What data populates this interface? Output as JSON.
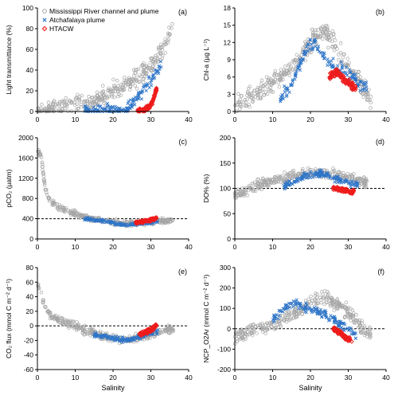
{
  "colors": {
    "river": "#a6a6a6",
    "atchafalaya": "#2e75c8",
    "htacw": "#ee1c1c",
    "axis": "#000000",
    "reference_line": "#000000"
  },
  "legend": {
    "items": [
      {
        "label": "Mississippi River channel and plume",
        "marker": "circle",
        "color": "#a6a6a6"
      },
      {
        "label": "Atchafalaya plume",
        "marker": "x",
        "color": "#2e75c8"
      },
      {
        "label": "HTACW",
        "marker": "diamond",
        "color": "#ee1c1c"
      }
    ],
    "placement": "top-left of panel (a)"
  },
  "chart_data": [
    {
      "panel": "(a)",
      "type": "scatter",
      "ylabel": "Light transmittance (%)",
      "xlabel": "",
      "xlim": [
        0,
        40
      ],
      "ylim": [
        0,
        100
      ],
      "xticks": [
        "0",
        "10",
        "20",
        "30",
        "40"
      ],
      "yticks": [
        "0",
        "20",
        "40",
        "60",
        "80",
        "100"
      ],
      "grid": false,
      "reference_line": null,
      "series": [
        {
          "name": "Mississippi River channel and plume",
          "trend": [
            [
              0,
              0
            ],
            [
              2,
              2
            ],
            [
              5,
              4
            ],
            [
              8,
              5
            ],
            [
              12,
              8
            ],
            [
              15,
              10
            ],
            [
              18,
              15
            ],
            [
              20,
              20
            ],
            [
              23,
              25
            ],
            [
              25,
              30
            ],
            [
              28,
              38
            ],
            [
              30,
              45
            ],
            [
              32,
              55
            ],
            [
              34,
              65
            ],
            [
              35,
              75
            ],
            [
              36,
              85
            ]
          ],
          "spread": 12
        },
        {
          "name": "Atchafalaya plume",
          "trend": [
            [
              12.5,
              1
            ],
            [
              18,
              1
            ],
            [
              22,
              1
            ],
            [
              24,
              3
            ],
            [
              25,
              8
            ],
            [
              27,
              15
            ],
            [
              29,
              25
            ],
            [
              31,
              35
            ],
            [
              32,
              42
            ],
            [
              33,
              48
            ]
          ],
          "spread": 8
        },
        {
          "name": "HTACW",
          "trend": [
            [
              26.5,
              1
            ],
            [
              28,
              1
            ],
            [
              29,
              3
            ],
            [
              30,
              6
            ],
            [
              30.5,
              10
            ],
            [
              31,
              16
            ],
            [
              31.5,
              22
            ]
          ],
          "spread": 3
        }
      ]
    },
    {
      "panel": "(b)",
      "type": "scatter",
      "ylabel": "Chl-a (µg L⁻¹)",
      "xlabel": "",
      "xlim": [
        0,
        40
      ],
      "ylim": [
        0,
        18
      ],
      "xticks": [
        "0",
        "10",
        "20",
        "30",
        "40"
      ],
      "yticks": [
        "0",
        "3",
        "6",
        "9",
        "12",
        "15",
        "18"
      ],
      "grid": false,
      "reference_line": null,
      "series": [
        {
          "name": "Mississippi River channel and plume",
          "trend": [
            [
              0,
              1
            ],
            [
              3,
              2
            ],
            [
              6,
              3
            ],
            [
              10,
              5
            ],
            [
              14,
              7
            ],
            [
              18,
              10
            ],
            [
              21,
              13
            ],
            [
              24,
              14
            ],
            [
              27,
              11
            ],
            [
              30,
              8
            ],
            [
              32,
              6
            ],
            [
              34,
              4
            ],
            [
              36,
              2
            ]
          ],
          "spread": 2.5
        },
        {
          "name": "Atchafalaya plume",
          "trend": [
            [
              12,
              2
            ],
            [
              15,
              5
            ],
            [
              17,
              8
            ],
            [
              19,
              11
            ],
            [
              21,
              12
            ],
            [
              23,
              10
            ],
            [
              26,
              8
            ],
            [
              29,
              7
            ],
            [
              31,
              6
            ],
            [
              33,
              5
            ],
            [
              35,
              4
            ]
          ],
          "spread": 1.5
        },
        {
          "name": "HTACW",
          "trend": [
            [
              25,
              6
            ],
            [
              27,
              7
            ],
            [
              28,
              6
            ],
            [
              29,
              5.5
            ],
            [
              30,
              5
            ],
            [
              31,
              4.5
            ],
            [
              32,
              4
            ]
          ],
          "spread": 1
        }
      ]
    },
    {
      "panel": "(c)",
      "type": "scatter",
      "ylabel": "pCO₂ (µatm)",
      "xlabel": "",
      "xlim": [
        0,
        40
      ],
      "ylim": [
        0,
        2000
      ],
      "xticks": [
        "0",
        "10",
        "20",
        "30",
        "40"
      ],
      "yticks": [
        "0",
        "400",
        "800",
        "1200",
        "1600",
        "2000"
      ],
      "grid": false,
      "reference_line": 400,
      "series": [
        {
          "name": "Mississippi River channel and plume",
          "trend": [
            [
              0,
              1750
            ],
            [
              1,
              1650
            ],
            [
              2,
              1000
            ],
            [
              3,
              800
            ],
            [
              5,
              650
            ],
            [
              8,
              550
            ],
            [
              10,
              500
            ],
            [
              13,
              420
            ],
            [
              16,
              380
            ],
            [
              20,
              330
            ],
            [
              24,
              300
            ],
            [
              28,
              320
            ],
            [
              31,
              340
            ],
            [
              34,
              360
            ],
            [
              36,
              370
            ]
          ],
          "spread": 80
        },
        {
          "name": "Atchafalaya plume",
          "trend": [
            [
              12,
              400
            ],
            [
              15,
              380
            ],
            [
              18,
              350
            ],
            [
              21,
              300
            ],
            [
              24,
              280
            ],
            [
              27,
              300
            ],
            [
              30,
              330
            ],
            [
              32,
              340
            ]
          ],
          "spread": 40
        },
        {
          "name": "HTACW",
          "trend": [
            [
              26,
              320
            ],
            [
              28,
              350
            ],
            [
              30,
              370
            ],
            [
              31,
              400
            ],
            [
              31.5,
              430
            ]
          ],
          "spread": 40
        }
      ]
    },
    {
      "panel": "(d)",
      "type": "scatter",
      "ylabel": "DO% (%)",
      "xlabel": "",
      "xlim": [
        0,
        40
      ],
      "ylim": [
        0,
        200
      ],
      "xticks": [
        "0",
        "10",
        "20",
        "30",
        "40"
      ],
      "yticks": [
        "0",
        "50",
        "100",
        "150",
        "200"
      ],
      "grid": false,
      "reference_line": 100,
      "series": [
        {
          "name": "Mississippi River channel and plume",
          "trend": [
            [
              0,
              85
            ],
            [
              4,
              100
            ],
            [
              8,
              110
            ],
            [
              12,
              118
            ],
            [
              16,
              125
            ],
            [
              20,
              130
            ],
            [
              24,
              128
            ],
            [
              28,
              125
            ],
            [
              31,
              120
            ],
            [
              33,
              115
            ],
            [
              35,
              110
            ]
          ],
          "spread": 15
        },
        {
          "name": "Atchafalaya plume",
          "trend": [
            [
              13,
              105
            ],
            [
              16,
              115
            ],
            [
              19,
              125
            ],
            [
              22,
              130
            ],
            [
              25,
              125
            ],
            [
              28,
              115
            ],
            [
              31,
              110
            ],
            [
              33,
              105
            ]
          ],
          "spread": 10
        },
        {
          "name": "HTACW",
          "trend": [
            [
              26,
              100
            ],
            [
              28,
              98
            ],
            [
              29,
              96
            ],
            [
              30,
              95
            ],
            [
              31,
              92
            ],
            [
              31.5,
              95
            ]
          ],
          "spread": 5
        }
      ]
    },
    {
      "panel": "(e)",
      "type": "scatter",
      "ylabel": "CO₂ flux (mmol C m⁻² d⁻¹)",
      "xlabel": "Salinity",
      "xlim": [
        0,
        40
      ],
      "ylim": [
        -60,
        80
      ],
      "xticks": [
        "0",
        "10",
        "20",
        "30",
        "40"
      ],
      "yticks": [
        "-60",
        "-40",
        "-20",
        "0",
        "20",
        "40",
        "60",
        "80"
      ],
      "grid": false,
      "reference_line": 0,
      "series": [
        {
          "name": "Mississippi River channel and plume",
          "trend": [
            [
              0,
              60
            ],
            [
              1,
              45
            ],
            [
              2,
              25
            ],
            [
              4,
              12
            ],
            [
              7,
              5
            ],
            [
              10,
              0
            ],
            [
              14,
              -8
            ],
            [
              18,
              -15
            ],
            [
              22,
              -18
            ],
            [
              25,
              -18
            ],
            [
              28,
              -15
            ],
            [
              31,
              -10
            ],
            [
              34,
              -6
            ],
            [
              36,
              -4
            ]
          ],
          "spread": 8
        },
        {
          "name": "Atchafalaya plume",
          "trend": [
            [
              15,
              -12
            ],
            [
              18,
              -15
            ],
            [
              21,
              -18
            ],
            [
              24,
              -20
            ],
            [
              27,
              -15
            ],
            [
              30,
              -10
            ],
            [
              32,
              -8
            ]
          ],
          "spread": 5
        },
        {
          "name": "HTACW",
          "trend": [
            [
              27,
              -12
            ],
            [
              29,
              -8
            ],
            [
              30,
              -5
            ],
            [
              31,
              -2
            ],
            [
              31.5,
              2
            ]
          ],
          "spread": 4
        }
      ]
    },
    {
      "panel": "(f)",
      "type": "scatter",
      "ylabel": "NCP_O2Ar (mmol C m⁻² d⁻¹)",
      "xlabel": "Salinity",
      "xlim": [
        0,
        40
      ],
      "ylim": [
        -200,
        300
      ],
      "xticks": [
        "0",
        "10",
        "20",
        "30",
        "40"
      ],
      "yticks": [
        "-200",
        "-100",
        "0",
        "100",
        "200",
        "300"
      ],
      "grid": false,
      "reference_line": 0,
      "series": [
        {
          "name": "Mississippi River channel and plume",
          "trend": [
            [
              0,
              -40
            ],
            [
              3,
              -20
            ],
            [
              6,
              0
            ],
            [
              10,
              20
            ],
            [
              14,
              60
            ],
            [
              18,
              100
            ],
            [
              21,
              140
            ],
            [
              24,
              160
            ],
            [
              27,
              120
            ],
            [
              30,
              80
            ],
            [
              32,
              40
            ],
            [
              34,
              0
            ],
            [
              36,
              -30
            ]
          ],
          "spread": 50
        },
        {
          "name": "Atchafalaya plume",
          "trend": [
            [
              10,
              40
            ],
            [
              13,
              100
            ],
            [
              15,
              130
            ],
            [
              18,
              110
            ],
            [
              21,
              90
            ],
            [
              24,
              70
            ],
            [
              26,
              50
            ],
            [
              28,
              20
            ],
            [
              30,
              0
            ],
            [
              32,
              -40
            ]
          ],
          "spread": 30
        },
        {
          "name": "HTACW",
          "trend": [
            [
              26,
              0
            ],
            [
              28,
              -20
            ],
            [
              29,
              -40
            ],
            [
              30,
              -50
            ],
            [
              31,
              -60
            ]
          ],
          "spread": 15
        }
      ]
    }
  ]
}
